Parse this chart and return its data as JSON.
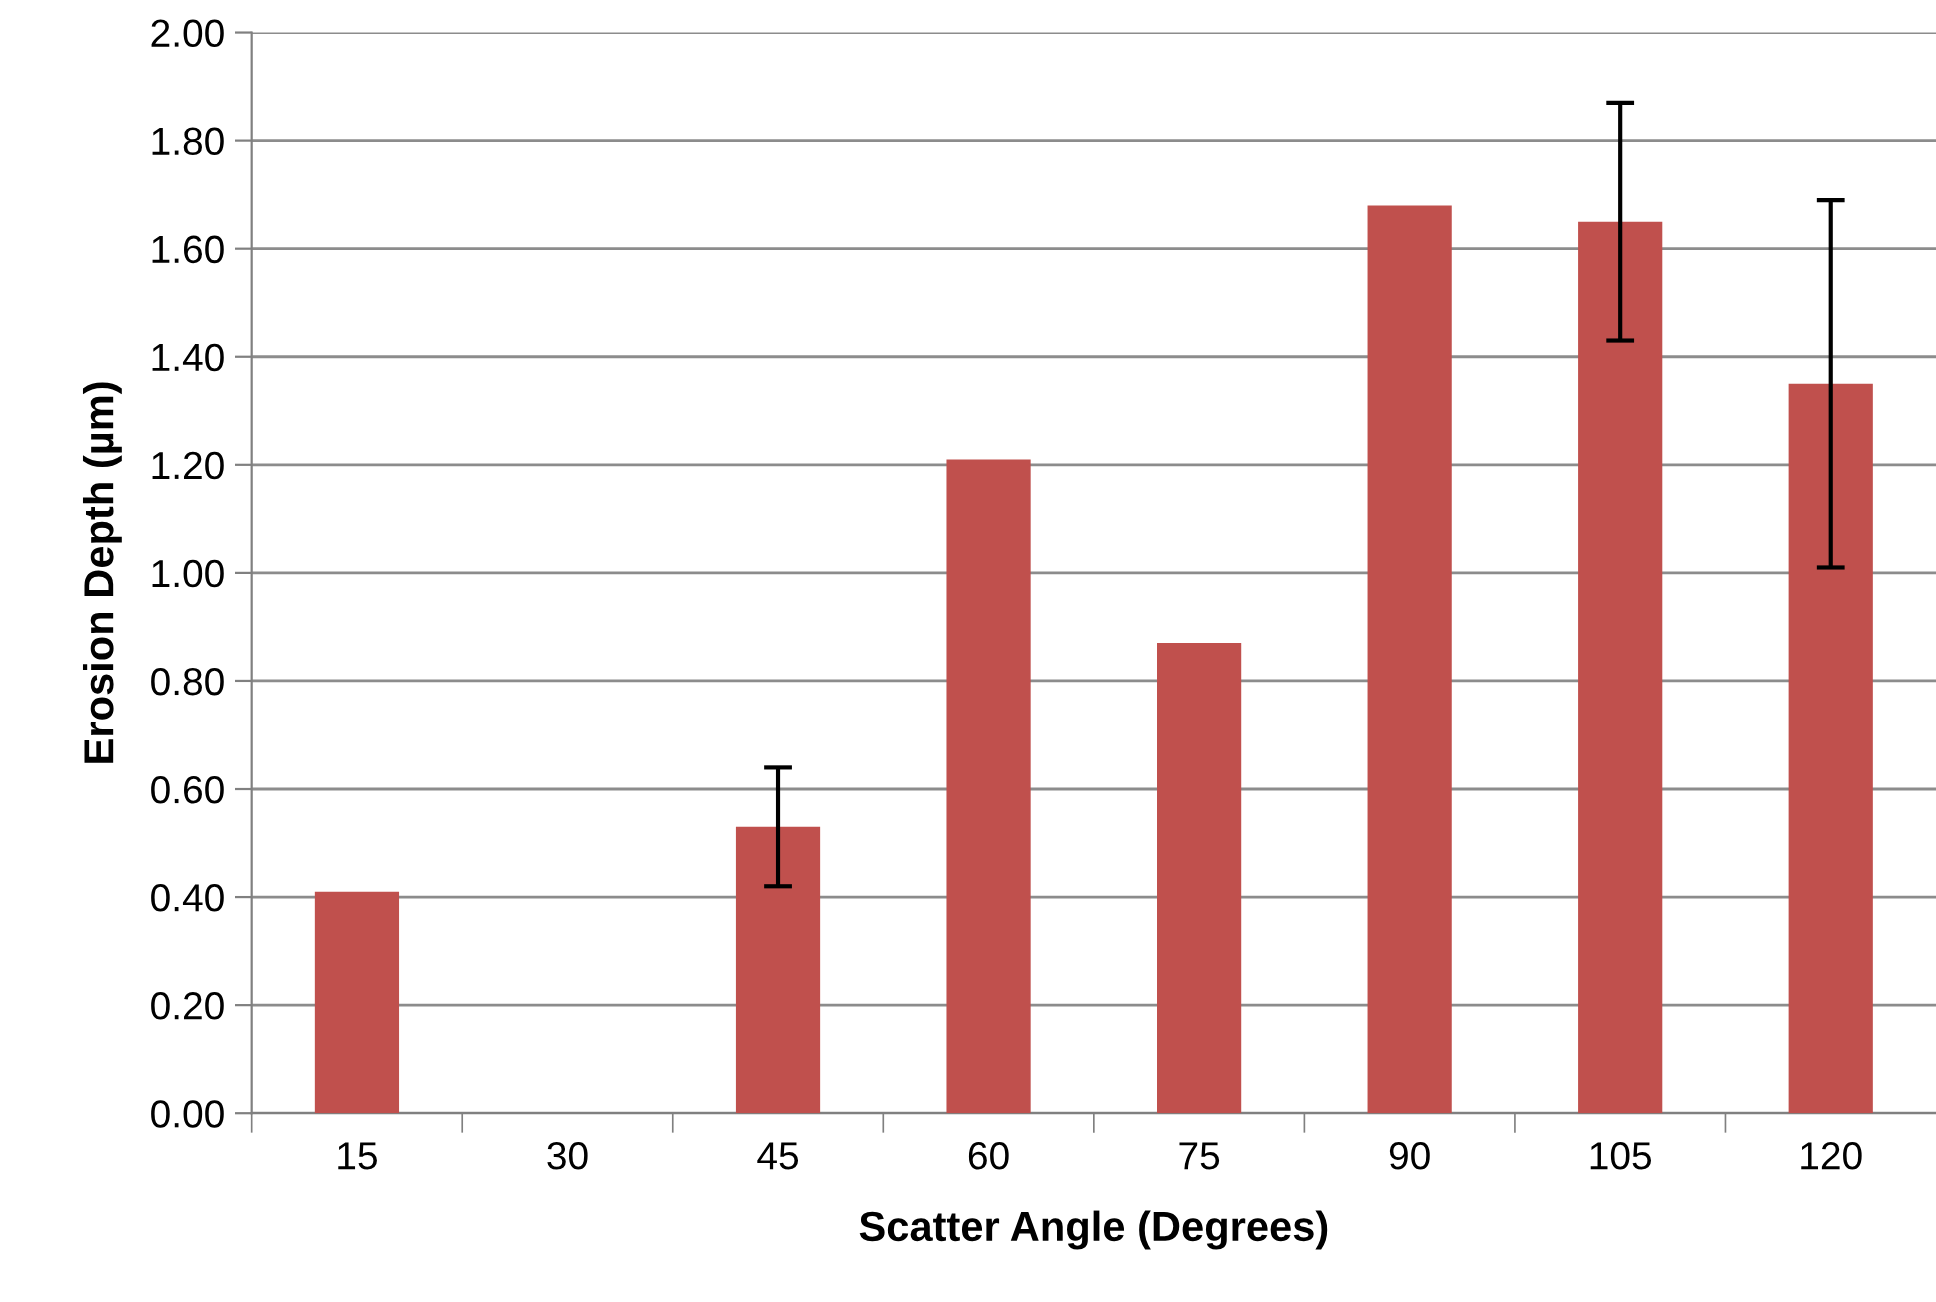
{
  "chart_data": {
    "type": "bar",
    "xlabel": "Scatter Angle (Degrees)",
    "ylabel": "Erosion Depth (µm)",
    "categories": [
      "15",
      "30",
      "45",
      "60",
      "75",
      "90",
      "105",
      "120"
    ],
    "values": [
      0.41,
      null,
      0.53,
      1.21,
      0.87,
      1.68,
      1.65,
      1.35
    ],
    "errors": [
      null,
      null,
      [
        0.42,
        0.64
      ],
      null,
      null,
      null,
      [
        1.43,
        1.87
      ],
      [
        1.01,
        1.69
      ]
    ],
    "color": "#c0504d",
    "ylim": [
      0,
      2
    ],
    "yticks": [
      {
        "value": 0,
        "label": "0.00"
      },
      {
        "value": 0.2,
        "label": "0.20"
      },
      {
        "value": 0.4,
        "label": "0.40"
      },
      {
        "value": 0.6,
        "label": "0.60"
      },
      {
        "value": 0.8,
        "label": "0.80"
      },
      {
        "value": 1.0,
        "label": "1.00"
      },
      {
        "value": 1.2,
        "label": "1.20"
      },
      {
        "value": 1.4,
        "label": "1.40"
      },
      {
        "value": 1.6,
        "label": "1.60"
      },
      {
        "value": 1.8,
        "label": "1.80"
      },
      {
        "value": 2.0,
        "label": "2.00"
      }
    ],
    "grid": "y"
  }
}
